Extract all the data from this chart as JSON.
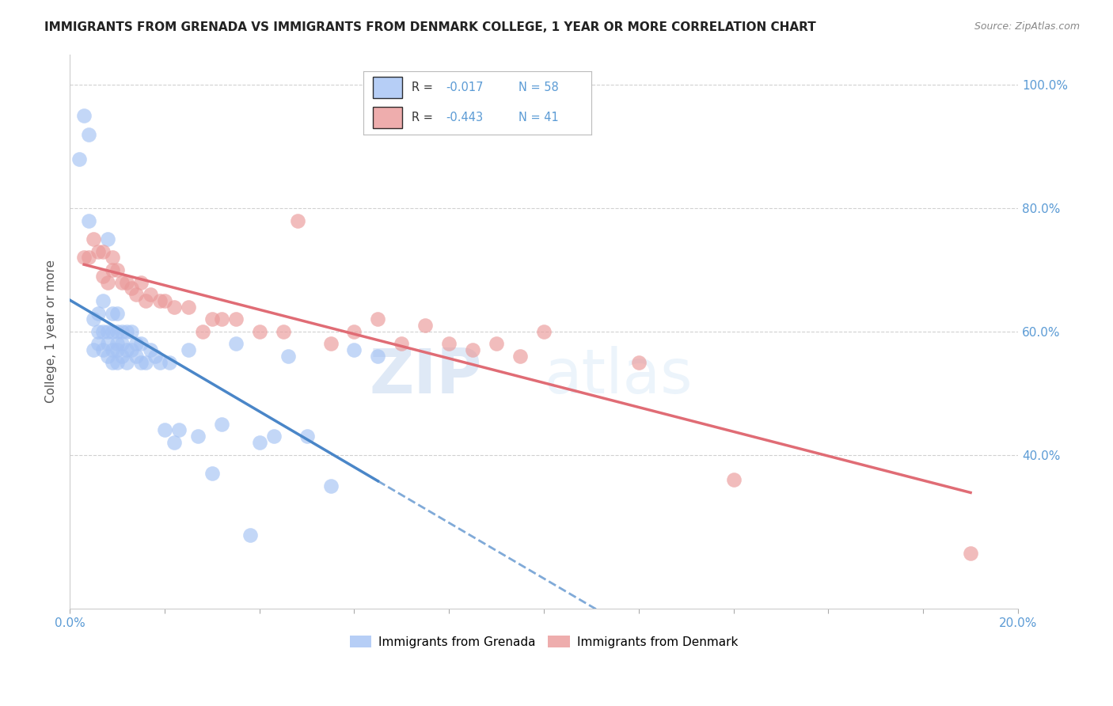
{
  "title": "IMMIGRANTS FROM GRENADA VS IMMIGRANTS FROM DENMARK COLLEGE, 1 YEAR OR MORE CORRELATION CHART",
  "source": "Source: ZipAtlas.com",
  "xlabel": "",
  "ylabel": "College, 1 year or more",
  "xlim": [
    0.0,
    0.2
  ],
  "ylim": [
    0.15,
    1.05
  ],
  "xticks": [
    0.0,
    0.02,
    0.04,
    0.06,
    0.08,
    0.1,
    0.12,
    0.14,
    0.16,
    0.18,
    0.2
  ],
  "xtick_labels": [
    "0.0%",
    "",
    "",
    "",
    "",
    "",
    "",
    "",
    "",
    "",
    "20.0%"
  ],
  "ytick_labels_right": [
    "100.0%",
    "80.0%",
    "60.0%",
    "40.0%"
  ],
  "yticks": [
    1.0,
    0.8,
    0.6,
    0.4
  ],
  "legend_R1": "-0.017",
  "legend_N1": "58",
  "legend_R2": "-0.443",
  "legend_N2": "41",
  "color_grenada": "#a4c2f4",
  "color_denmark": "#ea9999",
  "color_grenada_line": "#4a86c8",
  "color_denmark_line": "#e06c75",
  "watermark_zip": "ZIP",
  "watermark_atlas": "atlas",
  "background_color": "#ffffff",
  "grid_color": "#cccccc",
  "grenada_x": [
    0.002,
    0.003,
    0.004,
    0.004,
    0.005,
    0.005,
    0.006,
    0.006,
    0.006,
    0.007,
    0.007,
    0.007,
    0.008,
    0.008,
    0.008,
    0.008,
    0.009,
    0.009,
    0.009,
    0.009,
    0.01,
    0.01,
    0.01,
    0.01,
    0.01,
    0.011,
    0.011,
    0.011,
    0.012,
    0.012,
    0.012,
    0.013,
    0.013,
    0.014,
    0.014,
    0.015,
    0.015,
    0.016,
    0.017,
    0.018,
    0.019,
    0.02,
    0.021,
    0.022,
    0.023,
    0.025,
    0.027,
    0.03,
    0.032,
    0.035,
    0.038,
    0.04,
    0.043,
    0.046,
    0.05,
    0.055,
    0.06,
    0.065
  ],
  "grenada_y": [
    0.88,
    0.95,
    0.78,
    0.92,
    0.57,
    0.62,
    0.58,
    0.6,
    0.63,
    0.57,
    0.6,
    0.65,
    0.56,
    0.58,
    0.6,
    0.75,
    0.55,
    0.57,
    0.6,
    0.63,
    0.55,
    0.57,
    0.58,
    0.6,
    0.63,
    0.56,
    0.58,
    0.6,
    0.55,
    0.57,
    0.6,
    0.57,
    0.6,
    0.56,
    0.58,
    0.55,
    0.58,
    0.55,
    0.57,
    0.56,
    0.55,
    0.44,
    0.55,
    0.42,
    0.44,
    0.57,
    0.43,
    0.37,
    0.45,
    0.58,
    0.27,
    0.42,
    0.43,
    0.56,
    0.43,
    0.35,
    0.57,
    0.56
  ],
  "denmark_x": [
    0.003,
    0.004,
    0.005,
    0.006,
    0.007,
    0.007,
    0.008,
    0.009,
    0.009,
    0.01,
    0.011,
    0.012,
    0.013,
    0.014,
    0.015,
    0.016,
    0.017,
    0.019,
    0.02,
    0.022,
    0.025,
    0.028,
    0.03,
    0.032,
    0.035,
    0.04,
    0.045,
    0.048,
    0.055,
    0.06,
    0.065,
    0.07,
    0.075,
    0.08,
    0.085,
    0.09,
    0.095,
    0.1,
    0.12,
    0.14,
    0.19
  ],
  "denmark_y": [
    0.72,
    0.72,
    0.75,
    0.73,
    0.73,
    0.69,
    0.68,
    0.72,
    0.7,
    0.7,
    0.68,
    0.68,
    0.67,
    0.66,
    0.68,
    0.65,
    0.66,
    0.65,
    0.65,
    0.64,
    0.64,
    0.6,
    0.62,
    0.62,
    0.62,
    0.6,
    0.6,
    0.78,
    0.58,
    0.6,
    0.62,
    0.58,
    0.61,
    0.58,
    0.57,
    0.58,
    0.56,
    0.6,
    0.55,
    0.36,
    0.24
  ]
}
